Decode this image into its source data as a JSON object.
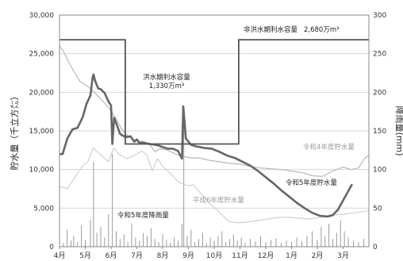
{
  "chart_data": {
    "type": "line",
    "ylabel_left": "貯水量（千立方㍍）",
    "ylabel_right": "降雨量(mm)",
    "x_ticks": [
      "4月",
      "5月",
      "6月",
      "7月",
      "8月",
      "9月",
      "10月",
      "11月",
      "12月",
      "1月",
      "2月",
      "3月"
    ],
    "y_left_ticks": [
      "0",
      "5,000",
      "10,000",
      "15,000",
      "20,000",
      "25,000",
      "30,000"
    ],
    "y_right_ticks": [
      "0",
      "50",
      "100",
      "150",
      "200",
      "250",
      "300"
    ],
    "ylim_left": [
      0,
      30000
    ],
    "ylim_right": [
      0,
      300
    ],
    "xlim_months": [
      0,
      12
    ],
    "annotations": {
      "non_flood": {
        "text": "非洪水期利水容量",
        "value": "2,680万m³"
      },
      "flood": {
        "text": "洪水期利水容量",
        "value": "1,330万m³"
      },
      "r4": "令和4年度貯水量",
      "r5": "令和5年度貯水量",
      "h6": "平成6年度貯水量",
      "rain": "令和5年度降雨量"
    },
    "capacity_line": [
      [
        0,
        26800
      ],
      [
        2.55,
        26800
      ],
      [
        2.55,
        13300
      ],
      [
        6.95,
        13300
      ],
      [
        6.95,
        26800
      ],
      [
        12,
        26800
      ]
    ],
    "series": [
      {
        "name": "令和5年度貯水量",
        "color": "#666666",
        "points": [
          [
            0,
            12000
          ],
          [
            0.12,
            12000
          ],
          [
            0.3,
            14000
          ],
          [
            0.5,
            15200
          ],
          [
            0.7,
            15400
          ],
          [
            0.9,
            16800
          ],
          [
            1.05,
            18500
          ],
          [
            1.2,
            19600
          ],
          [
            1.28,
            21800
          ],
          [
            1.32,
            22300
          ],
          [
            1.38,
            21500
          ],
          [
            1.5,
            20500
          ],
          [
            1.6,
            20400
          ],
          [
            1.75,
            19900
          ],
          [
            1.9,
            18800
          ],
          [
            2.0,
            18300
          ],
          [
            2.05,
            13300
          ],
          [
            2.12,
            16700
          ],
          [
            2.2,
            16000
          ],
          [
            2.35,
            14600
          ],
          [
            2.5,
            14300
          ],
          [
            2.6,
            14200
          ],
          [
            2.75,
            14300
          ],
          [
            2.9,
            13600
          ],
          [
            3.0,
            13900
          ],
          [
            3.1,
            13400
          ],
          [
            3.2,
            13500
          ],
          [
            3.35,
            13400
          ],
          [
            3.5,
            13300
          ],
          [
            3.7,
            13200
          ],
          [
            3.85,
            13100
          ],
          [
            4.0,
            12900
          ],
          [
            4.2,
            12700
          ],
          [
            4.4,
            12700
          ],
          [
            4.6,
            12400
          ],
          [
            4.7,
            11700
          ],
          [
            4.75,
            11400
          ],
          [
            4.8,
            18200
          ],
          [
            4.9,
            14000
          ],
          [
            5.1,
            13200
          ],
          [
            5.3,
            13000
          ],
          [
            5.6,
            12800
          ],
          [
            5.9,
            12700
          ],
          [
            6.2,
            12300
          ],
          [
            6.5,
            11800
          ],
          [
            6.8,
            11500
          ],
          [
            7.1,
            11000
          ],
          [
            7.4,
            10500
          ],
          [
            7.7,
            9800
          ],
          [
            8.0,
            9000
          ],
          [
            8.3,
            8200
          ],
          [
            8.6,
            7300
          ],
          [
            8.9,
            6500
          ],
          [
            9.2,
            5700
          ],
          [
            9.5,
            5000
          ],
          [
            9.8,
            4400
          ],
          [
            10.1,
            4000
          ],
          [
            10.4,
            3900
          ],
          [
            10.6,
            4100
          ],
          [
            10.8,
            4800
          ],
          [
            11.0,
            6000
          ],
          [
            11.2,
            7200
          ],
          [
            11.35,
            8100
          ]
        ]
      },
      {
        "name": "令和4年度貯水量",
        "color": "#b8b8b8",
        "points": [
          [
            0,
            26000
          ],
          [
            0.15,
            25300
          ],
          [
            0.3,
            24300
          ],
          [
            0.5,
            23000
          ],
          [
            0.8,
            21400
          ],
          [
            1.2,
            20500
          ],
          [
            1.5,
            19500
          ],
          [
            1.8,
            18400
          ],
          [
            2.0,
            17600
          ],
          [
            2.2,
            16500
          ],
          [
            2.4,
            15300
          ],
          [
            2.6,
            14500
          ],
          [
            2.8,
            14000
          ],
          [
            3.0,
            13700
          ],
          [
            3.3,
            13600
          ],
          [
            3.5,
            13200
          ],
          [
            3.7,
            12300
          ],
          [
            3.9,
            12700
          ],
          [
            4.2,
            12500
          ],
          [
            4.5,
            12000
          ],
          [
            4.8,
            11700
          ],
          [
            5.1,
            11500
          ],
          [
            5.4,
            11500
          ],
          [
            5.8,
            11200
          ],
          [
            6.2,
            11000
          ],
          [
            6.6,
            10800
          ],
          [
            7.0,
            10700
          ],
          [
            7.4,
            10400
          ],
          [
            7.8,
            10200
          ],
          [
            8.2,
            10100
          ],
          [
            8.6,
            10000
          ],
          [
            9.0,
            9800
          ],
          [
            9.4,
            9600
          ],
          [
            9.8,
            9200
          ],
          [
            10.2,
            9100
          ],
          [
            10.6,
            9800
          ],
          [
            11.0,
            10300
          ],
          [
            11.3,
            10000
          ],
          [
            11.6,
            10200
          ],
          [
            11.8,
            11300
          ],
          [
            12.0,
            11900
          ]
        ]
      },
      {
        "name": "平成6年度貯水量",
        "color": "#d0d0d0",
        "points": [
          [
            0,
            7800
          ],
          [
            0.3,
            7500
          ],
          [
            0.6,
            9000
          ],
          [
            0.9,
            10500
          ],
          [
            1.1,
            11000
          ],
          [
            1.3,
            12800
          ],
          [
            1.5,
            12200
          ],
          [
            1.7,
            11600
          ],
          [
            1.9,
            11000
          ],
          [
            2.1,
            12800
          ],
          [
            2.3,
            12000
          ],
          [
            2.6,
            11400
          ],
          [
            2.9,
            11800
          ],
          [
            3.2,
            12400
          ],
          [
            3.4,
            11800
          ],
          [
            3.6,
            9800
          ],
          [
            3.8,
            11400
          ],
          [
            4.0,
            10400
          ],
          [
            4.3,
            9500
          ],
          [
            4.6,
            8400
          ],
          [
            4.8,
            8100
          ],
          [
            5.0,
            7900
          ],
          [
            5.2,
            8000
          ],
          [
            5.5,
            6800
          ],
          [
            5.8,
            5700
          ],
          [
            6.1,
            4800
          ],
          [
            6.4,
            3800
          ],
          [
            6.6,
            3200
          ],
          [
            6.9,
            3100
          ],
          [
            7.3,
            3200
          ],
          [
            7.7,
            3400
          ],
          [
            8.1,
            3600
          ],
          [
            8.5,
            3800
          ],
          [
            8.9,
            3800
          ],
          [
            9.3,
            3700
          ],
          [
            9.7,
            3600
          ],
          [
            10.1,
            3800
          ],
          [
            10.5,
            4100
          ],
          [
            11.0,
            4200
          ],
          [
            11.5,
            4400
          ],
          [
            12.0,
            4700
          ]
        ]
      }
    ],
    "rainfall": [
      [
        0.15,
        5
      ],
      [
        0.3,
        22
      ],
      [
        0.45,
        8
      ],
      [
        0.55,
        14
      ],
      [
        0.7,
        6
      ],
      [
        0.85,
        28
      ],
      [
        1.0,
        9
      ],
      [
        1.2,
        35
      ],
      [
        1.32,
        110
      ],
      [
        1.45,
        18
      ],
      [
        1.6,
        26
      ],
      [
        1.75,
        12
      ],
      [
        1.9,
        42
      ],
      [
        2.05,
        120
      ],
      [
        2.2,
        20
      ],
      [
        2.35,
        10
      ],
      [
        2.5,
        16
      ],
      [
        2.65,
        6
      ],
      [
        2.8,
        30
      ],
      [
        2.95,
        12
      ],
      [
        3.1,
        8
      ],
      [
        3.25,
        18
      ],
      [
        3.4,
        14
      ],
      [
        3.55,
        24
      ],
      [
        3.7,
        10
      ],
      [
        3.85,
        6
      ],
      [
        4.0,
        16
      ],
      [
        4.15,
        9
      ],
      [
        4.3,
        5
      ],
      [
        4.45,
        12
      ],
      [
        4.6,
        8
      ],
      [
        4.75,
        30
      ],
      [
        4.82,
        180
      ],
      [
        4.95,
        14
      ],
      [
        5.1,
        22
      ],
      [
        5.25,
        6
      ],
      [
        5.4,
        10
      ],
      [
        5.55,
        18
      ],
      [
        5.7,
        5
      ],
      [
        5.85,
        12
      ],
      [
        6.0,
        8
      ],
      [
        6.15,
        14
      ],
      [
        6.3,
        20
      ],
      [
        6.45,
        6
      ],
      [
        6.6,
        10
      ],
      [
        6.75,
        16
      ],
      [
        6.9,
        8
      ],
      [
        7.05,
        12
      ],
      [
        7.2,
        5
      ],
      [
        7.4,
        10
      ],
      [
        7.6,
        7
      ],
      [
        7.8,
        14
      ],
      [
        8.0,
        6
      ],
      [
        8.2,
        9
      ],
      [
        8.4,
        11
      ],
      [
        8.6,
        5
      ],
      [
        8.8,
        8
      ],
      [
        9.0,
        6
      ],
      [
        9.2,
        12
      ],
      [
        9.4,
        7
      ],
      [
        9.6,
        14
      ],
      [
        9.8,
        20
      ],
      [
        10.0,
        9
      ],
      [
        10.15,
        26
      ],
      [
        10.3,
        14
      ],
      [
        10.45,
        30
      ],
      [
        10.6,
        10
      ],
      [
        10.75,
        18
      ],
      [
        10.9,
        34
      ],
      [
        11.05,
        20
      ],
      [
        11.2,
        12
      ],
      [
        11.4,
        8
      ],
      [
        11.6,
        6
      ],
      [
        11.8,
        10
      ]
    ]
  }
}
